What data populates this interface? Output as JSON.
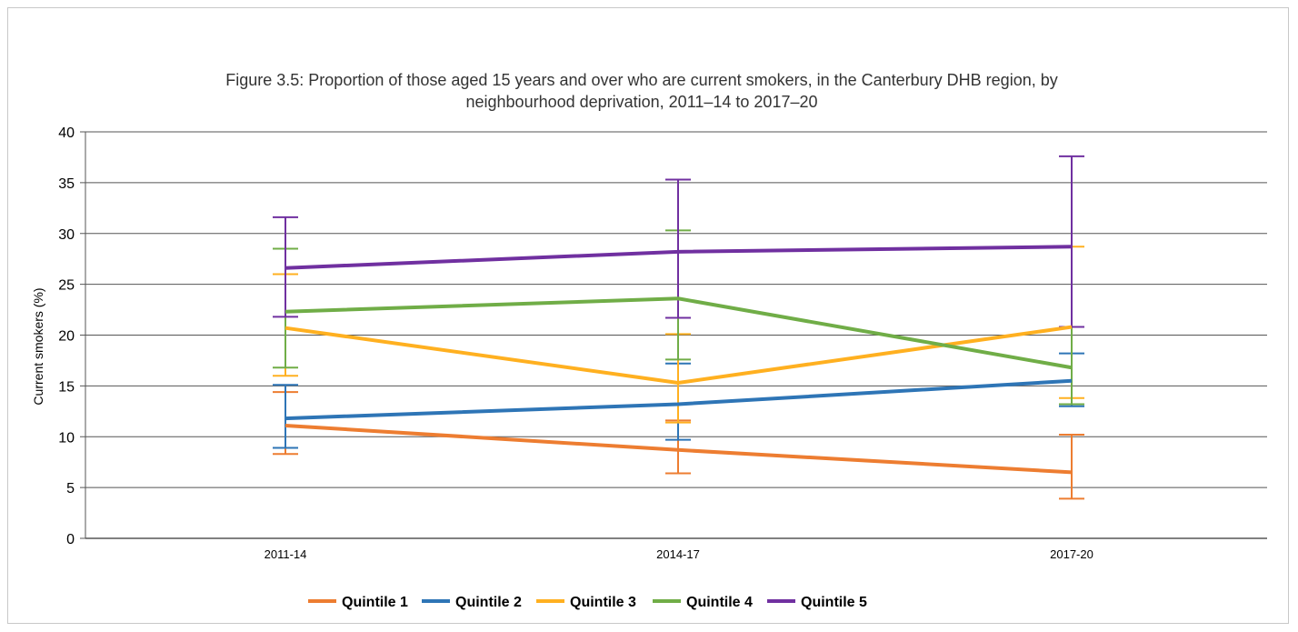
{
  "chart_data": {
    "type": "line",
    "title_line1": "Figure 3.5: Proportion of those aged 15 years and over who are current smokers, in the Canterbury DHB region, by",
    "title_line2": "neighbourhood deprivation, 2011–14 to 2017–20",
    "xlabel": "",
    "ylabel": "Current smokers (%)",
    "ylim": [
      0,
      40
    ],
    "yticks": [
      0,
      5,
      10,
      15,
      20,
      25,
      30,
      35,
      40
    ],
    "categories": [
      "2011-14",
      "2014-17",
      "2017-20"
    ],
    "grid": true,
    "legend_position": "bottom",
    "series": [
      {
        "name": "Quintile 1",
        "color": "#ED7D31",
        "values": [
          11.1,
          8.7,
          6.5
        ],
        "err_low": [
          8.3,
          6.4,
          3.9
        ],
        "err_high": [
          14.4,
          11.6,
          10.2
        ]
      },
      {
        "name": "Quintile 2",
        "color": "#2E75B6",
        "values": [
          11.8,
          13.2,
          15.5
        ],
        "err_low": [
          8.9,
          9.7,
          13.0
        ],
        "err_high": [
          15.1,
          17.2,
          18.2
        ]
      },
      {
        "name": "Quintile 3",
        "color": "#FFB020",
        "values": [
          20.7,
          15.3,
          20.8
        ],
        "err_low": [
          16.0,
          11.4,
          13.8
        ],
        "err_high": [
          26.0,
          20.1,
          28.7
        ]
      },
      {
        "name": "Quintile 4",
        "color": "#70AD47",
        "values": [
          22.3,
          23.6,
          16.8
        ],
        "err_low": [
          16.8,
          17.6,
          13.2
        ],
        "err_high": [
          28.5,
          30.3,
          20.8
        ]
      },
      {
        "name": "Quintile 5",
        "color": "#7030A0",
        "values": [
          26.6,
          28.2,
          28.7
        ],
        "err_low": [
          21.8,
          21.7,
          20.8
        ],
        "err_high": [
          31.6,
          35.3,
          37.6
        ]
      }
    ]
  }
}
